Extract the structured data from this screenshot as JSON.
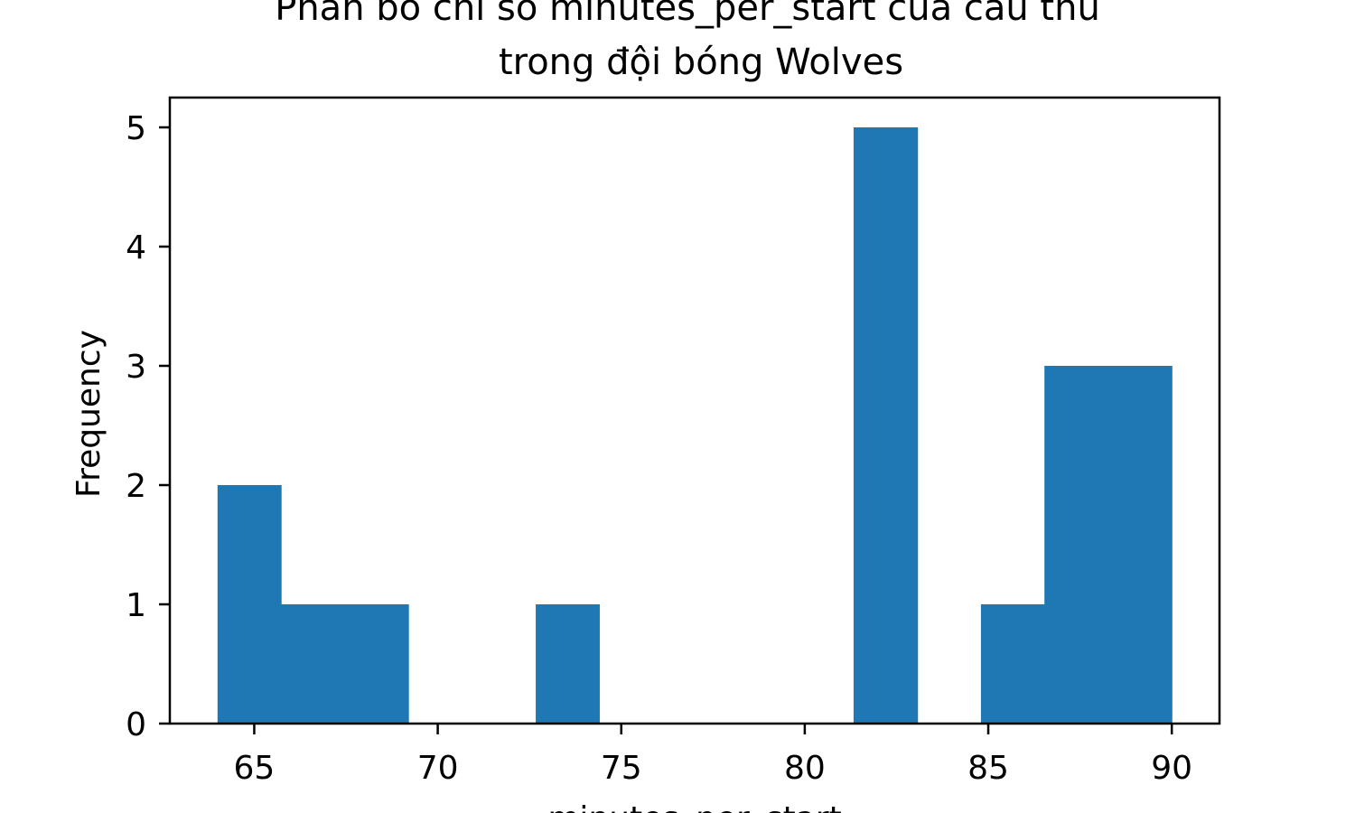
{
  "chart_data": {
    "type": "bar",
    "title_lines": [
      "Phân bổ chỉ số minutes_per_start của cầu thủ",
      "trong đội bóng Wolves"
    ],
    "xlabel": "minutes_per_start",
    "ylabel": "Frequency",
    "bar_color": "#1f77b4",
    "bin_edges": [
      64.0,
      65.73,
      67.47,
      69.2,
      70.93,
      72.67,
      74.4,
      76.13,
      77.87,
      79.6,
      81.33,
      83.07,
      84.8,
      86.53,
      88.27,
      90.0
    ],
    "frequencies": [
      2,
      1,
      1,
      0,
      0,
      1,
      0,
      0,
      0,
      0,
      5,
      0,
      1,
      3,
      3
    ],
    "xlim": [
      62.7,
      91.3
    ],
    "ylim": [
      0,
      5.25
    ],
    "xticks": [
      "65",
      "70",
      "75",
      "80",
      "85",
      "90"
    ],
    "yticks": [
      "0",
      "1",
      "2",
      "3",
      "4",
      "5"
    ],
    "grid": false,
    "legend": "none"
  }
}
